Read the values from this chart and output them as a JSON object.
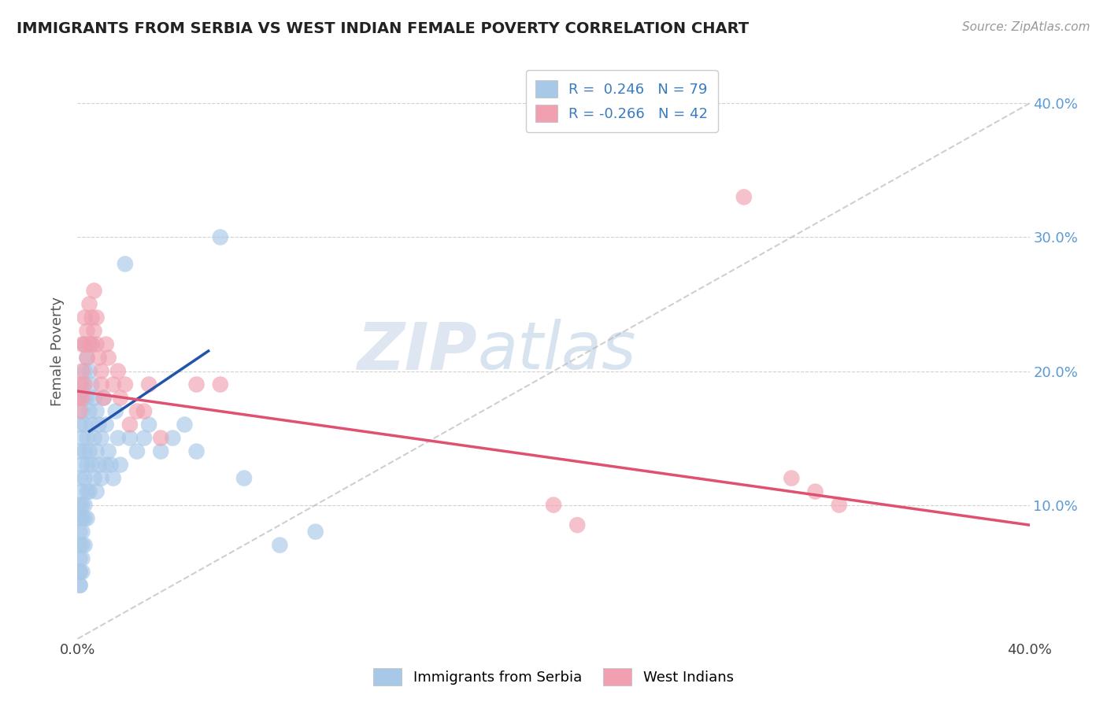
{
  "title": "IMMIGRANTS FROM SERBIA VS WEST INDIAN FEMALE POVERTY CORRELATION CHART",
  "source": "Source: ZipAtlas.com",
  "ylabel": "Female Poverty",
  "xlim": [
    0.0,
    0.4
  ],
  "ylim": [
    0.0,
    0.43
  ],
  "serbia_color": "#a8c8e8",
  "west_indian_color": "#f0a0b0",
  "serbia_line_color": "#2255aa",
  "west_indian_line_color": "#e05070",
  "diagonal_color": "#bbbbbb",
  "watermark_zip": "ZIP",
  "watermark_atlas": "atlas",
  "background_color": "#ffffff",
  "grid_color": "#cccccc",
  "serbia_x": [
    0.001,
    0.001,
    0.001,
    0.001,
    0.001,
    0.001,
    0.001,
    0.001,
    0.001,
    0.001,
    0.001,
    0.001,
    0.001,
    0.002,
    0.002,
    0.002,
    0.002,
    0.002,
    0.002,
    0.002,
    0.002,
    0.002,
    0.002,
    0.002,
    0.003,
    0.003,
    0.003,
    0.003,
    0.003,
    0.003,
    0.003,
    0.003,
    0.003,
    0.004,
    0.004,
    0.004,
    0.004,
    0.004,
    0.004,
    0.005,
    0.005,
    0.005,
    0.005,
    0.006,
    0.006,
    0.006,
    0.006,
    0.007,
    0.007,
    0.007,
    0.008,
    0.008,
    0.008,
    0.009,
    0.009,
    0.01,
    0.01,
    0.011,
    0.012,
    0.012,
    0.013,
    0.014,
    0.015,
    0.016,
    0.017,
    0.018,
    0.02,
    0.022,
    0.025,
    0.028,
    0.03,
    0.035,
    0.04,
    0.045,
    0.05,
    0.06,
    0.07,
    0.085,
    0.1
  ],
  "serbia_y": [
    0.18,
    0.16,
    0.14,
    0.12,
    0.1,
    0.09,
    0.08,
    0.07,
    0.06,
    0.05,
    0.05,
    0.04,
    0.04,
    0.19,
    0.17,
    0.15,
    0.13,
    0.11,
    0.1,
    0.09,
    0.08,
    0.07,
    0.06,
    0.05,
    0.22,
    0.2,
    0.18,
    0.16,
    0.14,
    0.12,
    0.1,
    0.09,
    0.07,
    0.21,
    0.18,
    0.15,
    0.13,
    0.11,
    0.09,
    0.2,
    0.17,
    0.14,
    0.11,
    0.22,
    0.19,
    0.16,
    0.13,
    0.18,
    0.15,
    0.12,
    0.17,
    0.14,
    0.11,
    0.16,
    0.13,
    0.15,
    0.12,
    0.18,
    0.16,
    0.13,
    0.14,
    0.13,
    0.12,
    0.17,
    0.15,
    0.13,
    0.28,
    0.15,
    0.14,
    0.15,
    0.16,
    0.14,
    0.15,
    0.16,
    0.14,
    0.3,
    0.12,
    0.07,
    0.08
  ],
  "west_x": [
    0.001,
    0.001,
    0.001,
    0.002,
    0.002,
    0.002,
    0.003,
    0.003,
    0.003,
    0.004,
    0.004,
    0.005,
    0.005,
    0.006,
    0.006,
    0.007,
    0.007,
    0.008,
    0.008,
    0.009,
    0.01,
    0.01,
    0.011,
    0.012,
    0.013,
    0.015,
    0.017,
    0.018,
    0.02,
    0.022,
    0.025,
    0.028,
    0.03,
    0.035,
    0.05,
    0.06,
    0.2,
    0.21,
    0.28,
    0.3,
    0.31,
    0.32
  ],
  "west_y": [
    0.19,
    0.18,
    0.17,
    0.22,
    0.2,
    0.18,
    0.24,
    0.22,
    0.19,
    0.23,
    0.21,
    0.25,
    0.22,
    0.24,
    0.22,
    0.26,
    0.23,
    0.24,
    0.22,
    0.21,
    0.2,
    0.19,
    0.18,
    0.22,
    0.21,
    0.19,
    0.2,
    0.18,
    0.19,
    0.16,
    0.17,
    0.17,
    0.19,
    0.15,
    0.19,
    0.19,
    0.1,
    0.085,
    0.33,
    0.12,
    0.11,
    0.1
  ],
  "serbia_line_x": [
    0.005,
    0.055
  ],
  "serbia_line_y": [
    0.155,
    0.215
  ],
  "west_line_x": [
    0.0,
    0.4
  ],
  "west_line_y": [
    0.185,
    0.085
  ]
}
